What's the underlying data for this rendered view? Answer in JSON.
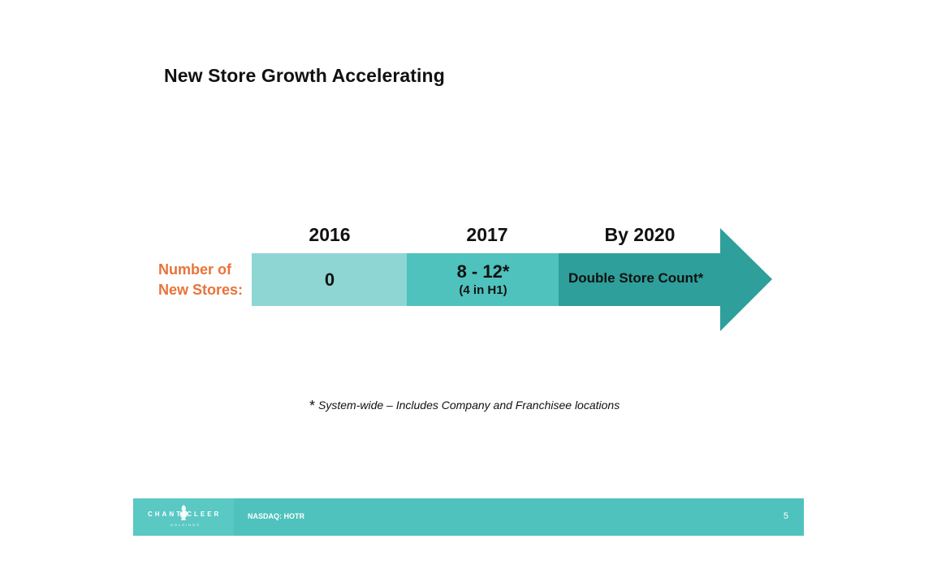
{
  "slide": {
    "title": "New Store Growth Accelerating",
    "row_label_line1": "Number of",
    "row_label_line2": "New Stores:"
  },
  "timeline": [
    {
      "year": "2016",
      "value": "0",
      "sub": ""
    },
    {
      "year": "2017",
      "value": "8 - 12*",
      "sub": "(4 in H1)"
    },
    {
      "year": "By 2020",
      "value": "Double Store Count*",
      "sub": ""
    }
  ],
  "colors": {
    "accent_orange": "#e8733a",
    "teal_light": "#8dd6d3",
    "teal_mid": "#4fc2bd",
    "teal_dark": "#2e9f9b",
    "footer_teal": "#4fc2bd"
  },
  "footnote": {
    "marker": "*",
    "text": "System-wide – Includes Company and Franchisee locations"
  },
  "footer": {
    "logo_word": "CHANTICLEER",
    "logo_sub": "HOLDINGS",
    "logo_icon": "rooster-icon",
    "ticker": "NASDAQ: HOTR",
    "page_number": "5"
  }
}
